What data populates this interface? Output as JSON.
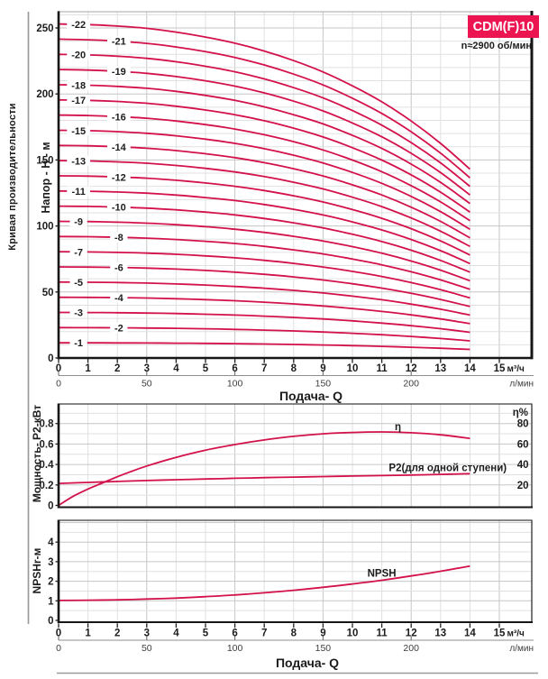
{
  "page": {
    "left_caption": "Кривая производительности"
  },
  "theme": {
    "curve_color": "#d3114b",
    "badge_bg": "#ec1551",
    "badge_text": "#ffffff",
    "text_color": "#1c1c1c",
    "grid_light": "#e0e0e0",
    "grid_dark": "#c6c6c6",
    "frame_dark": "#161616",
    "frame_thin": "#3f3f3f",
    "secondary_axis": "#8f8f8f",
    "secondary_text": "#3d3d3d"
  },
  "chart_data": [
    {
      "id": "head-curves",
      "type": "line",
      "title": "CDM(F)10",
      "subtitle": "n≈2900 об/мин",
      "ylabel": "Напор - H - м",
      "xlabel": "Подача- Q",
      "x_unit_primary": "м³/ч",
      "x_unit_secondary": "л/мин",
      "xlim": [
        0,
        16.1
      ],
      "ylim": [
        0,
        262
      ],
      "grid": true,
      "xticks": [
        0,
        1,
        2,
        3,
        4,
        5,
        6,
        7,
        8,
        9,
        10,
        11,
        12,
        13,
        14,
        15
      ],
      "yticks": [
        0,
        50,
        100,
        150,
        200,
        250
      ],
      "secondary_xticks": [
        0,
        50,
        100,
        150,
        200
      ],
      "lpm_per_m3h": 16.6667,
      "single_stage_head": {
        "q": [
          0,
          1,
          2,
          3,
          4,
          5,
          6,
          7,
          8,
          9,
          10,
          11,
          12,
          13,
          14
        ],
        "h": [
          11.5,
          11.48,
          11.43,
          11.35,
          11.22,
          11.05,
          10.84,
          10.57,
          10.24,
          9.85,
          9.37,
          8.82,
          8.16,
          7.39,
          6.5
        ]
      },
      "curves": [
        {
          "stage": 1,
          "label": "-1",
          "label_x": 0.68
        },
        {
          "stage": 2,
          "label": "-2",
          "label_x": 2.05
        },
        {
          "stage": 3,
          "label": "-3",
          "label_x": 0.68
        },
        {
          "stage": 4,
          "label": "-4",
          "label_x": 2.05
        },
        {
          "stage": 5,
          "label": "-5",
          "label_x": 0.68
        },
        {
          "stage": 6,
          "label": "-6",
          "label_x": 2.05
        },
        {
          "stage": 7,
          "label": "-7",
          "label_x": 0.68
        },
        {
          "stage": 8,
          "label": "-8",
          "label_x": 2.05
        },
        {
          "stage": 9,
          "label": "-9",
          "label_x": 0.68
        },
        {
          "stage": 10,
          "label": "-10",
          "label_x": 2.05
        },
        {
          "stage": 11,
          "label": "-11",
          "label_x": 0.68
        },
        {
          "stage": 12,
          "label": "-12",
          "label_x": 2.05
        },
        {
          "stage": 13,
          "label": "-13",
          "label_x": 0.68
        },
        {
          "stage": 14,
          "label": "-14",
          "label_x": 2.05
        },
        {
          "stage": 15,
          "label": "-15",
          "label_x": 0.68
        },
        {
          "stage": 16,
          "label": "-16",
          "label_x": 2.05
        },
        {
          "stage": 17,
          "label": "-17",
          "label_x": 0.68
        },
        {
          "stage": 18,
          "label": "-18",
          "label_x": 0.68
        },
        {
          "stage": 19,
          "label": "-19",
          "label_x": 2.05
        },
        {
          "stage": 20,
          "label": "-20",
          "label_x": 0.68
        },
        {
          "stage": 21,
          "label": "-21",
          "label_x": 2.05
        },
        {
          "stage": 22,
          "label": "-22",
          "label_x": 0.68
        }
      ]
    },
    {
      "id": "power-efficiency",
      "type": "line",
      "ylabel_left": "Мощность- P2-кВт",
      "ylabel_right": "η%",
      "yticks_left": [
        0,
        0.2,
        0.4,
        0.6,
        0.8
      ],
      "yticks_right": [
        20,
        40,
        60,
        80
      ],
      "ylim_left": [
        0,
        1.0
      ],
      "series": [
        {
          "key": "eta",
          "name": "η",
          "axis": "right",
          "x": [
            0,
            0.5,
            1,
            1.5,
            2,
            2.5,
            3,
            4,
            5,
            6,
            7,
            8,
            9,
            10,
            11,
            12,
            13,
            14
          ],
          "y": [
            0,
            9,
            16,
            22,
            28,
            33.5,
            38.5,
            47,
            54,
            59.5,
            64,
            67.5,
            70,
            71.3,
            71.8,
            71,
            69,
            65.5
          ],
          "label": "η",
          "label_at": {
            "x": 11.55,
            "y": 77
          },
          "label_anchor": "middle"
        },
        {
          "key": "p2",
          "name": "P2(для одной ступени)",
          "axis": "left",
          "x": [
            0,
            1,
            2,
            3,
            4,
            5,
            6,
            7,
            8,
            9,
            10,
            11,
            12,
            13,
            14
          ],
          "y": [
            0.215,
            0.225,
            0.234,
            0.243,
            0.251,
            0.258,
            0.265,
            0.271,
            0.277,
            0.282,
            0.287,
            0.292,
            0.297,
            0.303,
            0.31
          ],
          "label": "P2(для одной ступени)",
          "label_at": {
            "x": 15.25,
            "y": 0.368
          },
          "label_anchor": "end"
        }
      ]
    },
    {
      "id": "npsh",
      "type": "line",
      "ylabel": "NPSHr-м",
      "xlabel": "Подача- Q",
      "x_unit_primary": "м³/ч",
      "x_unit_secondary": "л/мин",
      "yticks": [
        0,
        1,
        2,
        3,
        4
      ],
      "xticks": [
        0,
        1,
        2,
        3,
        4,
        5,
        6,
        7,
        8,
        9,
        10,
        11,
        12,
        13,
        14,
        15
      ],
      "secondary_xticks": [
        0,
        50,
        100,
        150,
        200
      ],
      "ylim": [
        0,
        5.1
      ],
      "series": [
        {
          "key": "npsh",
          "name": "NPSH",
          "x": [
            0,
            1,
            2,
            3,
            4,
            5,
            6,
            7,
            8,
            9,
            10,
            11,
            12,
            13,
            14
          ],
          "y": [
            1.02,
            1.03,
            1.05,
            1.09,
            1.14,
            1.21,
            1.3,
            1.41,
            1.54,
            1.69,
            1.86,
            2.05,
            2.27,
            2.51,
            2.78
          ],
          "label": "NPSH",
          "label_at": {
            "x": 11.0,
            "y": 2.42
          },
          "label_anchor": "middle"
        }
      ]
    }
  ]
}
